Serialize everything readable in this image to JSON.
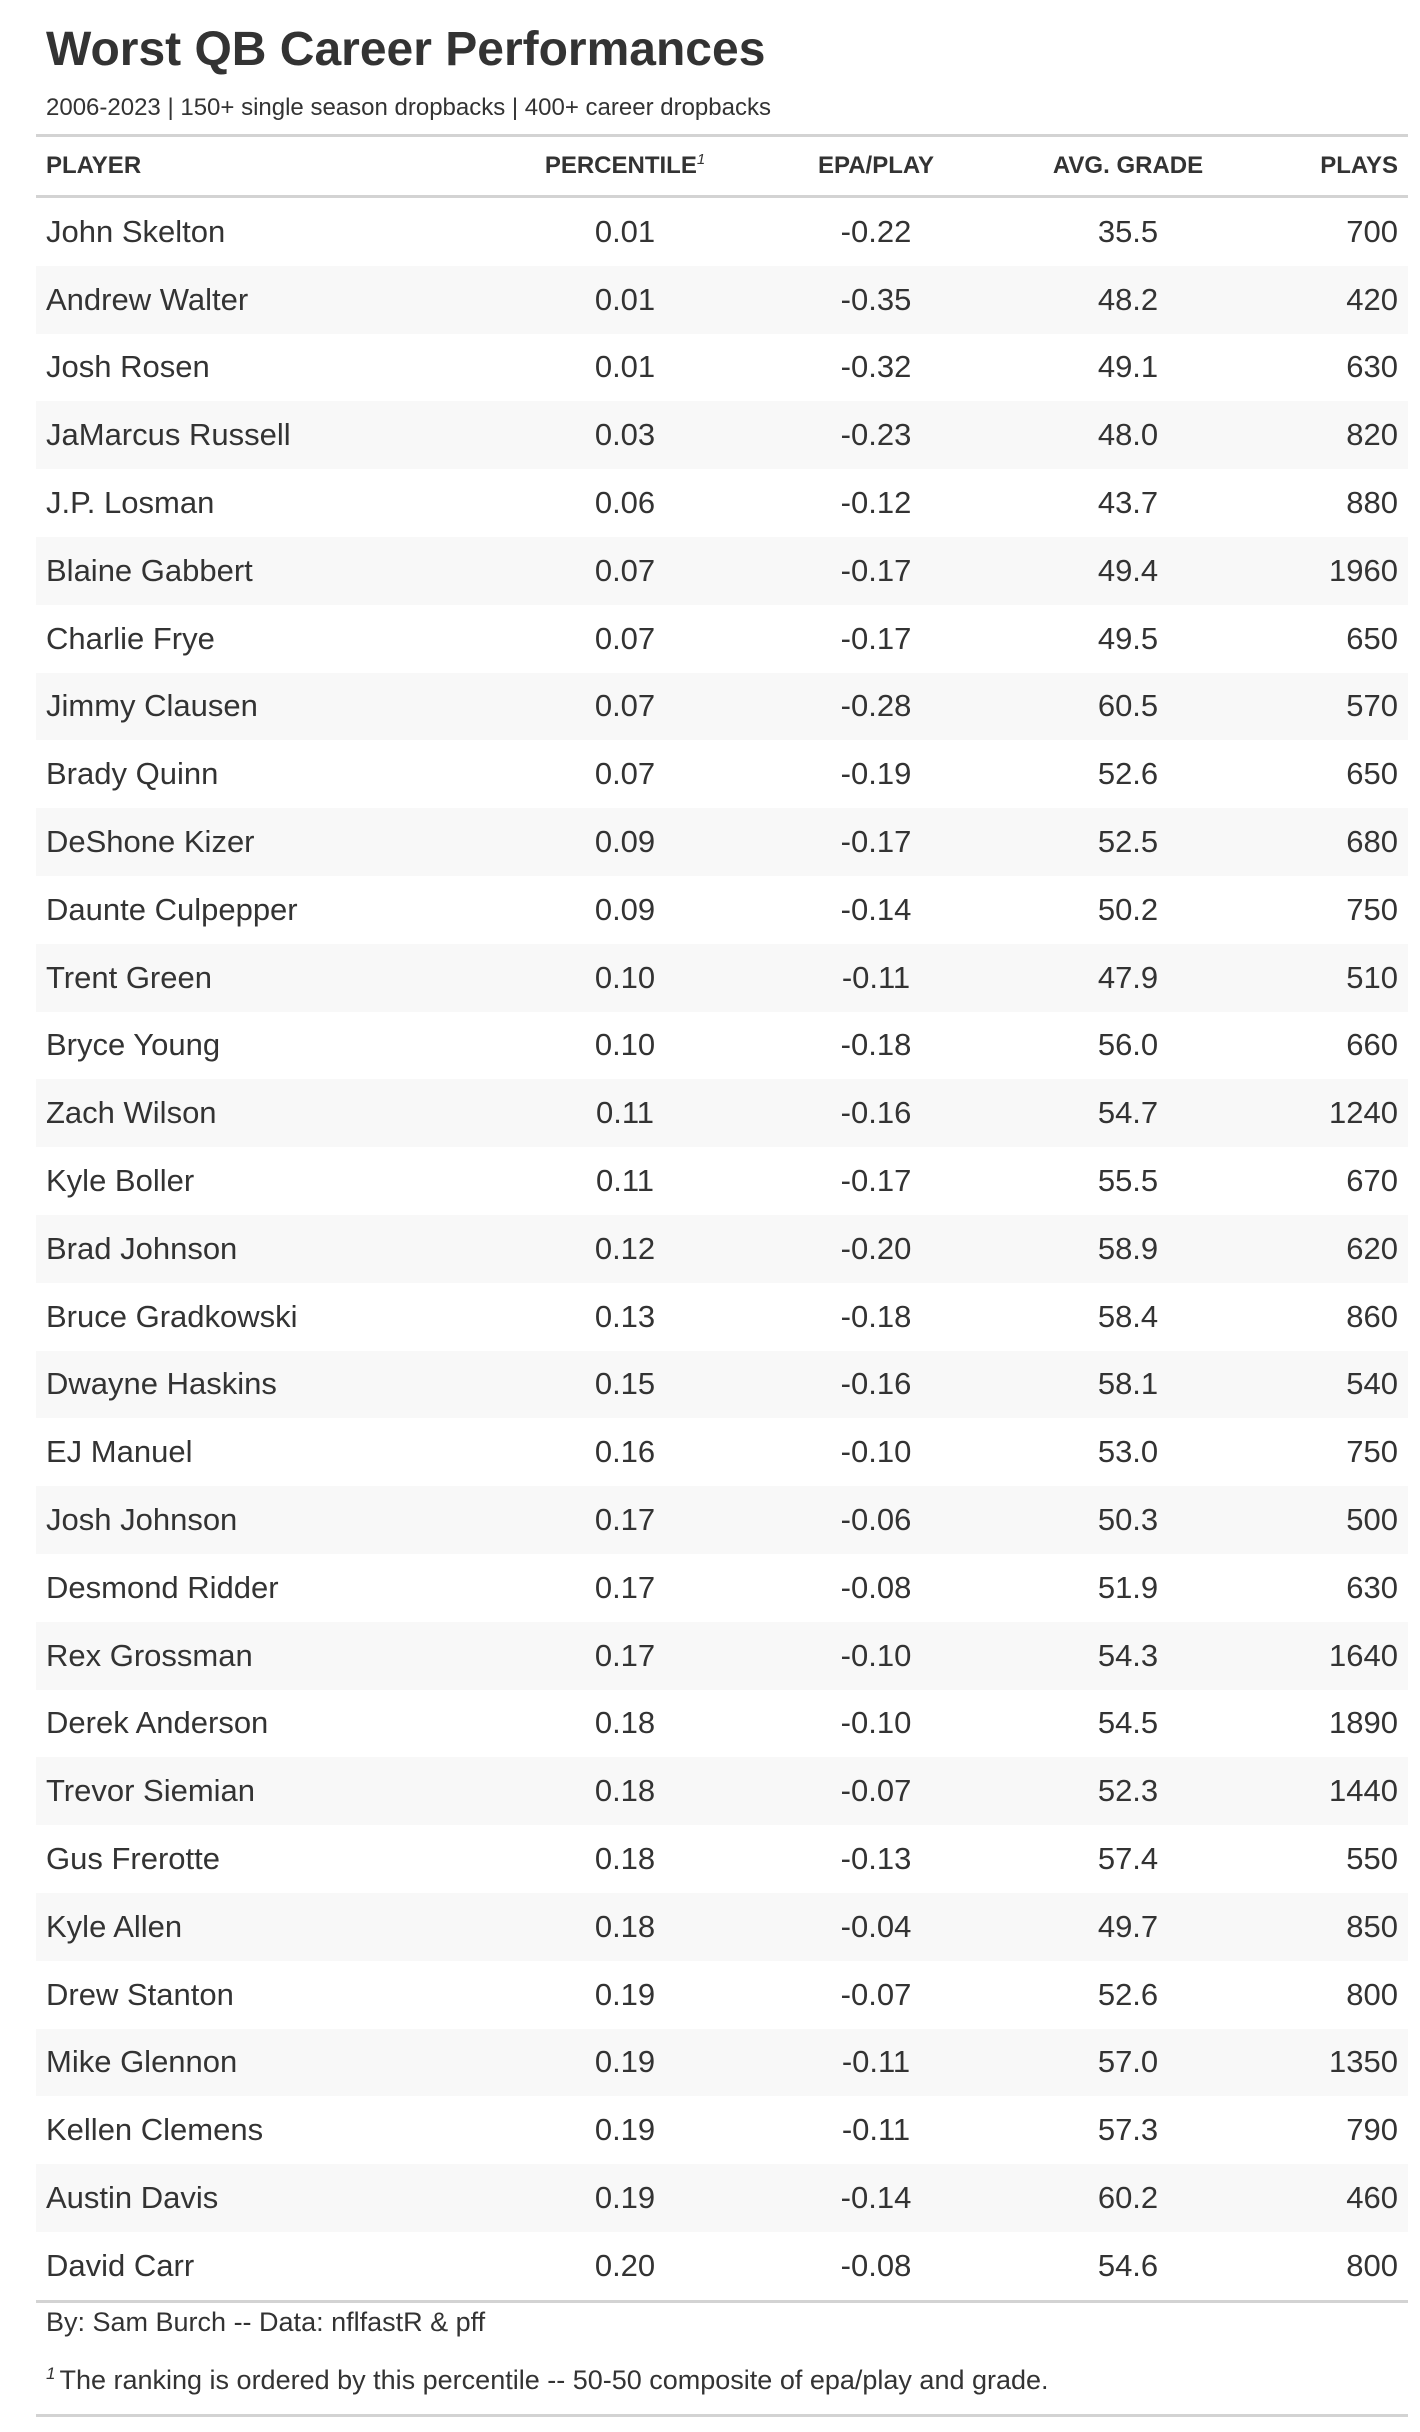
{
  "chart_data": {
    "type": "table",
    "title": "Worst QB Career Performances",
    "subtitle": "2006-2023 | 150+ single season dropbacks | 400+ career dropbacks",
    "columns": [
      "PLAYER",
      "PERCENTILE",
      "EPA/PLAY",
      "AVG. GRADE",
      "PLAYS"
    ],
    "column_footnote_marker": "1",
    "rows": [
      [
        "John Skelton",
        "0.01",
        "-0.22",
        "35.5",
        "700"
      ],
      [
        "Andrew Walter",
        "0.01",
        "-0.35",
        "48.2",
        "420"
      ],
      [
        "Josh Rosen",
        "0.01",
        "-0.32",
        "49.1",
        "630"
      ],
      [
        "JaMarcus Russell",
        "0.03",
        "-0.23",
        "48.0",
        "820"
      ],
      [
        "J.P. Losman",
        "0.06",
        "-0.12",
        "43.7",
        "880"
      ],
      [
        "Blaine Gabbert",
        "0.07",
        "-0.17",
        "49.4",
        "1960"
      ],
      [
        "Charlie Frye",
        "0.07",
        "-0.17",
        "49.5",
        "650"
      ],
      [
        "Jimmy Clausen",
        "0.07",
        "-0.28",
        "60.5",
        "570"
      ],
      [
        "Brady Quinn",
        "0.07",
        "-0.19",
        "52.6",
        "650"
      ],
      [
        "DeShone Kizer",
        "0.09",
        "-0.17",
        "52.5",
        "680"
      ],
      [
        "Daunte Culpepper",
        "0.09",
        "-0.14",
        "50.2",
        "750"
      ],
      [
        "Trent Green",
        "0.10",
        "-0.11",
        "47.9",
        "510"
      ],
      [
        "Bryce Young",
        "0.10",
        "-0.18",
        "56.0",
        "660"
      ],
      [
        "Zach Wilson",
        "0.11",
        "-0.16",
        "54.7",
        "1240"
      ],
      [
        "Kyle Boller",
        "0.11",
        "-0.17",
        "55.5",
        "670"
      ],
      [
        "Brad Johnson",
        "0.12",
        "-0.20",
        "58.9",
        "620"
      ],
      [
        "Bruce Gradkowski",
        "0.13",
        "-0.18",
        "58.4",
        "860"
      ],
      [
        "Dwayne Haskins",
        "0.15",
        "-0.16",
        "58.1",
        "540"
      ],
      [
        "EJ Manuel",
        "0.16",
        "-0.10",
        "53.0",
        "750"
      ],
      [
        "Josh Johnson",
        "0.17",
        "-0.06",
        "50.3",
        "500"
      ],
      [
        "Desmond Ridder",
        "0.17",
        "-0.08",
        "51.9",
        "630"
      ],
      [
        "Rex Grossman",
        "0.17",
        "-0.10",
        "54.3",
        "1640"
      ],
      [
        "Derek Anderson",
        "0.18",
        "-0.10",
        "54.5",
        "1890"
      ],
      [
        "Trevor Siemian",
        "0.18",
        "-0.07",
        "52.3",
        "1440"
      ],
      [
        "Gus Frerotte",
        "0.18",
        "-0.13",
        "57.4",
        "550"
      ],
      [
        "Kyle Allen",
        "0.18",
        "-0.04",
        "49.7",
        "850"
      ],
      [
        "Drew Stanton",
        "0.19",
        "-0.07",
        "52.6",
        "800"
      ],
      [
        "Mike Glennon",
        "0.19",
        "-0.11",
        "57.0",
        "1350"
      ],
      [
        "Kellen Clemens",
        "0.19",
        "-0.11",
        "57.3",
        "790"
      ],
      [
        "Austin Davis",
        "0.19",
        "-0.14",
        "60.2",
        "460"
      ],
      [
        "David Carr",
        "0.20",
        "-0.08",
        "54.6",
        "800"
      ]
    ],
    "source": "By: Sam Burch -- Data: nflfastR & pff",
    "footnote_marker": "1",
    "footnote": "The ranking is ordered by this percentile -- 50-50 composite of epa/play and grade."
  },
  "colors": {
    "text": "#333333",
    "rule": "#d3d3d3",
    "stripe": "#f8f8f8"
  }
}
